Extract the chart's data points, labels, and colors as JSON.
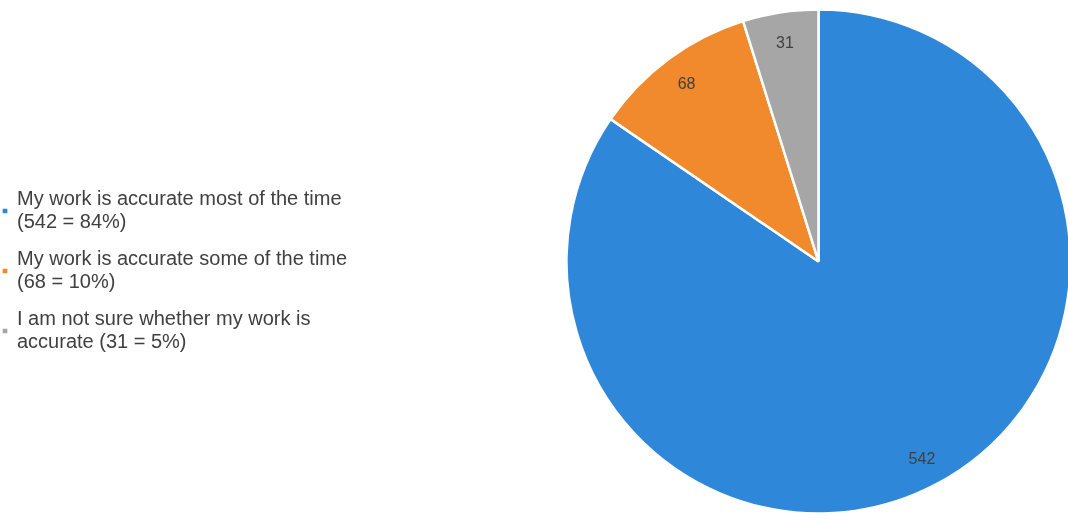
{
  "chart_data": {
    "type": "pie",
    "categories": [
      "My work is accurate most of the time (542 = 84%)",
      "My work is accurate some of the time (68 = 10%)",
      "I am not sure whether my work is accurate (31 = 5%)"
    ],
    "values": [
      542,
      68,
      31
    ],
    "colors": [
      "#2e87d8",
      "#f08a2c",
      "#a6a6a6"
    ],
    "data_labels": true,
    "legend": "left"
  }
}
